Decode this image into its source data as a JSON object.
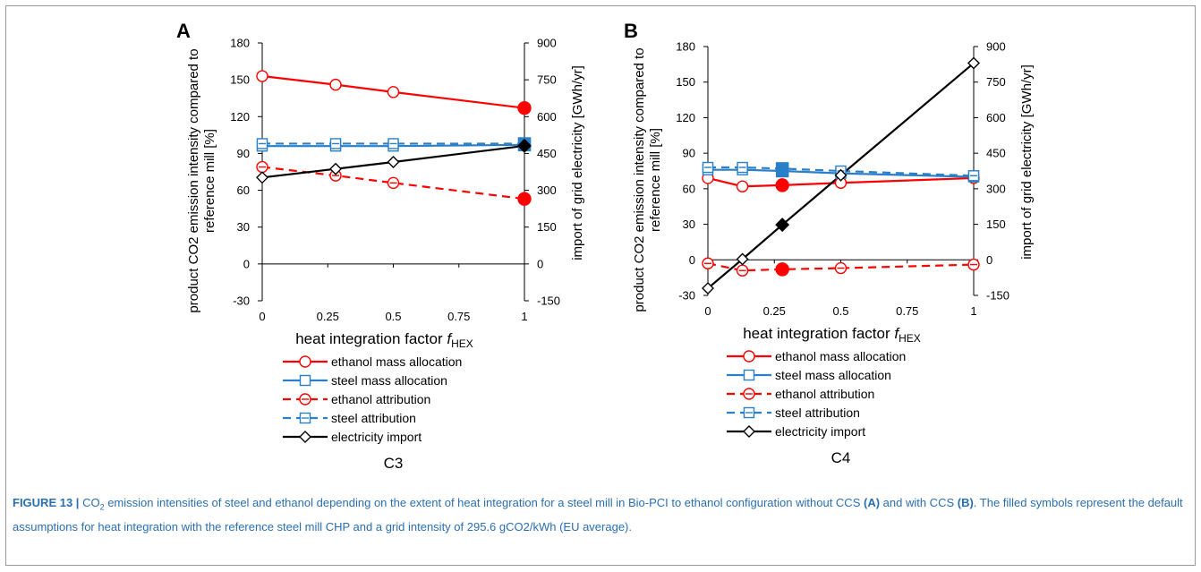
{
  "colors": {
    "ethanol": "#ff0000",
    "steel": "#2a7fc9",
    "electricity": "#000000",
    "caption": "#2a6fb0"
  },
  "chart_data": [
    {
      "type": "line",
      "panel_label": "A",
      "sublabel": "C3",
      "xlabel_main": "heat integration factor ",
      "xlabel_italic": "f",
      "xlabel_sub": "HEX",
      "ylabel_line1": "product CO2 emission intensity  compared to",
      "ylabel_line2": "reference mill [%]",
      "y2label": "import of grid electricity [GWh/yr]",
      "xlim": [
        0,
        1
      ],
      "xticks": [
        "0",
        "0.25",
        "0.5",
        "0.75",
        "1"
      ],
      "ylim": [
        -30,
        180
      ],
      "yticks": [
        "-30",
        "0",
        "30",
        "60",
        "90",
        "120",
        "150",
        "180"
      ],
      "y2lim": [
        -150,
        900
      ],
      "y2ticks": [
        "-150",
        "0",
        "150",
        "300",
        "450",
        "600",
        "750",
        "900"
      ],
      "series": [
        {
          "name": "ethanol mass allocation",
          "axis": "left",
          "x": [
            0,
            0.28,
            0.5,
            1
          ],
          "y": [
            153,
            146,
            140,
            127
          ],
          "filled": [
            false,
            false,
            false,
            true
          ]
        },
        {
          "name": "steel mass allocation",
          "axis": "left",
          "x": [
            0,
            0.28,
            0.5,
            1
          ],
          "y": [
            96,
            96,
            96,
            97
          ],
          "filled": [
            false,
            false,
            false,
            true
          ]
        },
        {
          "name": "ethanol attribution",
          "axis": "left",
          "x": [
            0,
            0.28,
            0.5,
            1
          ],
          "y": [
            79,
            72,
            66,
            53
          ],
          "filled": [
            false,
            false,
            false,
            true
          ]
        },
        {
          "name": "steel attribution",
          "axis": "left",
          "x": [
            0,
            0.28,
            0.5,
            1
          ],
          "y": [
            98,
            98,
            98,
            98
          ],
          "filled": [
            false,
            false,
            false,
            true
          ]
        },
        {
          "name": "electricity import",
          "axis": "right",
          "x": [
            0,
            0.28,
            0.5,
            1
          ],
          "y": [
            352,
            387,
            415,
            481
          ],
          "filled": [
            false,
            false,
            false,
            true
          ]
        }
      ]
    },
    {
      "type": "line",
      "panel_label": "B",
      "sublabel": "C4",
      "xlabel_main": "heat integration factor ",
      "xlabel_italic": "f",
      "xlabel_sub": "HEX",
      "ylabel_line1": "product CO2 emission intensity  compared to",
      "ylabel_line2": "reference mill [%]",
      "y2label": "import of grid electricity [GWh/yr]",
      "xlim": [
        0,
        1
      ],
      "xticks": [
        "0",
        "0.25",
        "0.5",
        "0.75",
        "1"
      ],
      "ylim": [
        -30,
        180
      ],
      "yticks": [
        "-30",
        "0",
        "30",
        "60",
        "90",
        "120",
        "150",
        "180"
      ],
      "y2lim": [
        -150,
        900
      ],
      "y2ticks": [
        "-150",
        "0",
        "150",
        "300",
        "450",
        "600",
        "750",
        "900"
      ],
      "series": [
        {
          "name": "ethanol mass allocation",
          "axis": "left",
          "x": [
            0,
            0.13,
            0.28,
            0.5,
            1
          ],
          "y": [
            69,
            62,
            63,
            65,
            69
          ],
          "filled": [
            false,
            false,
            true,
            false,
            false
          ]
        },
        {
          "name": "steel mass allocation",
          "axis": "left",
          "x": [
            0,
            0.13,
            0.28,
            0.5,
            1
          ],
          "y": [
            76,
            76,
            75,
            73,
            70
          ],
          "filled": [
            false,
            false,
            true,
            false,
            false
          ]
        },
        {
          "name": "ethanol attribution",
          "axis": "left",
          "x": [
            0,
            0.13,
            0.28,
            0.5,
            1
          ],
          "y": [
            -3,
            -9,
            -8,
            -7,
            -4
          ],
          "filled": [
            false,
            false,
            true,
            false,
            false
          ]
        },
        {
          "name": "steel attribution",
          "axis": "left",
          "x": [
            0,
            0.13,
            0.28,
            0.5,
            1
          ],
          "y": [
            78,
            78,
            77,
            75,
            71
          ],
          "filled": [
            false,
            false,
            true,
            false,
            false
          ]
        },
        {
          "name": "electricity import",
          "axis": "right",
          "x": [
            0,
            0.13,
            0.28,
            0.5,
            1
          ],
          "y": [
            -120,
            3,
            148,
            357,
            830
          ],
          "filled": [
            false,
            false,
            true,
            false,
            false
          ]
        }
      ]
    }
  ],
  "caption": {
    "figure_label": "FIGURE 13 |",
    "co2_prefix": "CO",
    "co2_sub": "2",
    "text_part1": " emission intensities of steel and ethanol depending on the extent of heat integration for a steel mill in Bio-PCI to ethanol configuration without CCS ",
    "ref_a": "(A)",
    "text_part2": " and with CCS ",
    "ref_b": "(B)",
    "text_part3": ". The filled symbols represent the default assumptions for heat integration with the reference steel mill CHP and a grid intensity of 295.6 gCO2/kWh (EU average)."
  }
}
